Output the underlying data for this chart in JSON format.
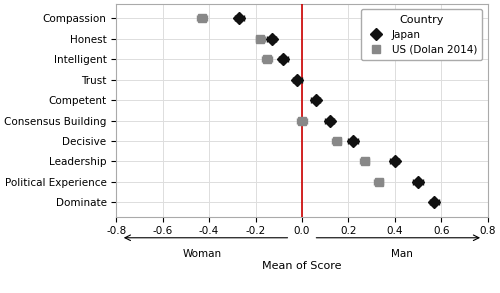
{
  "traits": [
    "Compassion",
    "Honest",
    "Intelligent",
    "Trust",
    "Competent",
    "Consensus Building",
    "Decisive",
    "Leadership",
    "Political Experience",
    "Dominate"
  ],
  "japan_values": [
    -0.27,
    -0.13,
    -0.08,
    -0.02,
    0.06,
    0.12,
    0.22,
    0.4,
    0.5,
    0.57
  ],
  "japan_xerr": [
    0.02,
    0.02,
    0.02,
    0.02,
    0.02,
    0.02,
    0.02,
    0.02,
    0.02,
    0.02
  ],
  "us_values": [
    -0.43,
    -0.18,
    -0.15,
    null,
    null,
    0.0,
    0.15,
    0.27,
    0.33,
    null
  ],
  "us_xerr": [
    0.02,
    0.02,
    0.02,
    null,
    null,
    0.02,
    0.02,
    0.02,
    0.02,
    null
  ],
  "japan_color": "#111111",
  "us_color": "#888888",
  "japan_marker": "D",
  "us_marker": "s",
  "japan_markersize": 6,
  "us_markersize": 6,
  "japan_label": "Japan",
  "us_label": "US (Dolan 2014)",
  "legend_title": "Country",
  "xlabel": "Mean of Score",
  "xlim": [
    -0.8,
    0.8
  ],
  "xticks": [
    -0.8,
    -0.6,
    -0.4,
    -0.2,
    0.0,
    0.2,
    0.4,
    0.6,
    0.8
  ],
  "vline_x": 0.0,
  "vline_color": "#cc0000",
  "background_color": "#ffffff",
  "grid_color": "#dddddd",
  "woman_label": "Woman",
  "man_label": "Man",
  "fig_width": 5.0,
  "fig_height": 2.93
}
